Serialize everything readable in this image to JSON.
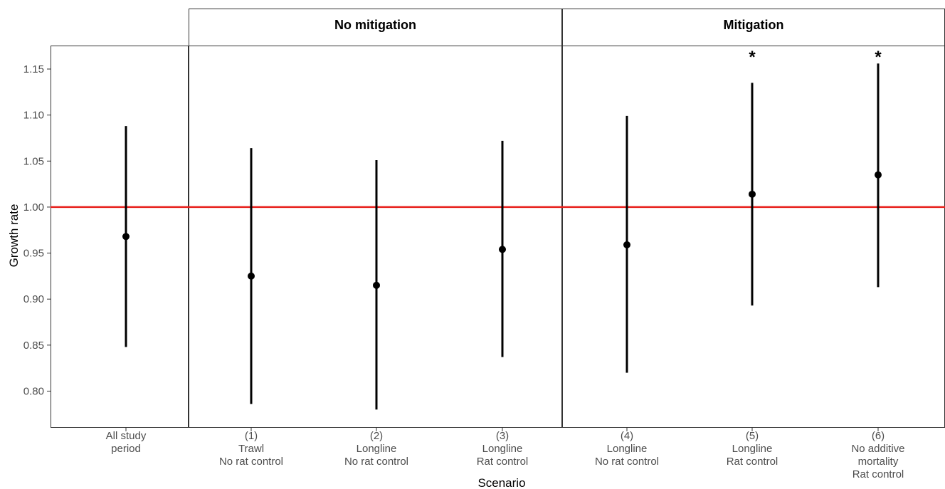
{
  "chart_data": {
    "type": "scatter",
    "xlabel": "Scenario",
    "ylabel": "Growth rate",
    "ylim": [
      0.76,
      1.175
    ],
    "yticks": [
      "0.80",
      "0.85",
      "0.90",
      "0.95",
      "1.00",
      "1.05",
      "1.10",
      "1.15"
    ],
    "reference_line": {
      "y": 1.0,
      "color": "#e8201c"
    },
    "panels": [
      {
        "strip": "",
        "categories": [
          {
            "label": [
              "All study",
              "period"
            ],
            "estimate": 0.968,
            "lower": 0.848,
            "upper": 1.088,
            "marker": ""
          }
        ]
      },
      {
        "strip": "No mitigation",
        "categories": [
          {
            "label": [
              "(1)",
              "Trawl",
              "No rat control"
            ],
            "estimate": 0.925,
            "lower": 0.786,
            "upper": 1.064,
            "marker": ""
          },
          {
            "label": [
              "(2)",
              "Longline",
              "No rat control"
            ],
            "estimate": 0.915,
            "lower": 0.78,
            "upper": 1.051,
            "marker": ""
          },
          {
            "label": [
              "(3)",
              "Longline",
              "Rat control"
            ],
            "estimate": 0.954,
            "lower": 0.837,
            "upper": 1.072,
            "marker": ""
          }
        ]
      },
      {
        "strip": "Mitigation",
        "categories": [
          {
            "label": [
              "(4)",
              "Longline",
              "No rat control"
            ],
            "estimate": 0.959,
            "lower": 0.82,
            "upper": 1.099,
            "marker": ""
          },
          {
            "label": [
              "(5)",
              "Longline",
              "Rat control"
            ],
            "estimate": 1.014,
            "lower": 0.893,
            "upper": 1.135,
            "marker": "*"
          },
          {
            "label": [
              "(6)",
              "No additive",
              "mortality",
              "Rat control"
            ],
            "estimate": 1.035,
            "lower": 0.913,
            "upper": 1.156,
            "marker": "*"
          }
        ]
      }
    ],
    "grid": false,
    "colors": {
      "points": "#000000",
      "intervals": "#000000",
      "panel_border": "#333333"
    }
  }
}
